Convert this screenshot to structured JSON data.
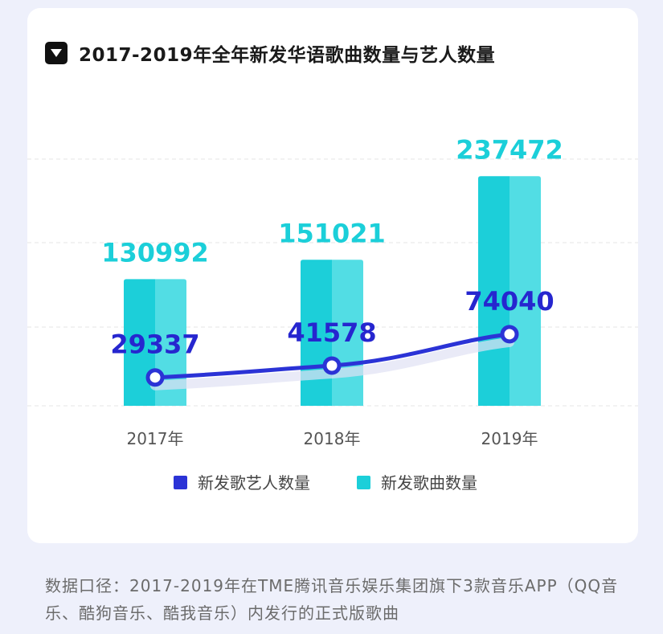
{
  "title": "2017-2019年全年新发华语歌曲数量与艺人数量",
  "footnote": "数据口径：2017-2019年在TME腾讯音乐娱乐集团旗下3款音乐APP（QQ音乐、酷狗音乐、酷我音乐）内发行的正式版歌曲",
  "colors": {
    "bar_dark": "#1ccfd9",
    "bar_light": "#52dde4",
    "line": "#2b33d6",
    "bar_label": "#1bcfd9",
    "line_label": "#2626cf",
    "axis_label": "#555555",
    "grid": "#e6e6e6"
  },
  "chart_data": {
    "type": "bar",
    "title": "2017-2019年全年新发华语歌曲数量与艺人数量",
    "categories": [
      "2017年",
      "2018年",
      "2019年"
    ],
    "ylim": [
      0,
      320000
    ],
    "grid": true,
    "legend_position": "bottom-center",
    "series": [
      {
        "name": "新发歌艺人数量",
        "type": "line",
        "values": [
          29337,
          41578,
          74040
        ]
      },
      {
        "name": "新发歌曲数量",
        "type": "bar",
        "values": [
          130992,
          151021,
          237472
        ]
      }
    ]
  }
}
